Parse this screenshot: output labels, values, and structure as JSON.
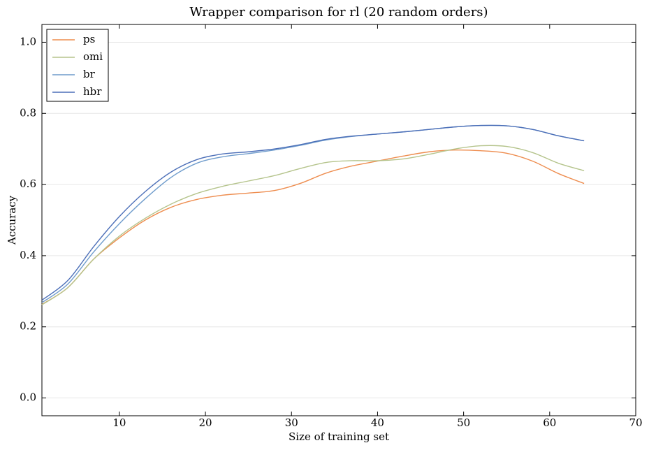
{
  "chart_data": {
    "type": "line",
    "title": "Wrapper comparison for rl (20 random orders)",
    "x_label": "Size of training set",
    "y_label": "Accuracy",
    "x": [
      1,
      4,
      7,
      10,
      13,
      16,
      19,
      22,
      25,
      28,
      31,
      34,
      37,
      40,
      43,
      46,
      49,
      52,
      55,
      58,
      61,
      64
    ],
    "series": [
      {
        "name": "ps",
        "color": "#ee8d4f",
        "values": [
          0.263,
          0.31,
          0.39,
          0.45,
          0.5,
          0.536,
          0.558,
          0.57,
          0.576,
          0.583,
          0.603,
          0.632,
          0.652,
          0.666,
          0.68,
          0.692,
          0.697,
          0.695,
          0.688,
          0.666,
          0.631,
          0.603
        ]
      },
      {
        "name": "omi",
        "color": "#b5c48c",
        "values": [
          0.262,
          0.31,
          0.39,
          0.455,
          0.505,
          0.545,
          0.575,
          0.595,
          0.61,
          0.625,
          0.645,
          0.662,
          0.667,
          0.667,
          0.672,
          0.685,
          0.7,
          0.709,
          0.707,
          0.69,
          0.66,
          0.639
        ]
      },
      {
        "name": "br",
        "color": "#6f9ccc",
        "values": [
          0.268,
          0.32,
          0.41,
          0.49,
          0.56,
          0.62,
          0.66,
          0.678,
          0.687,
          0.697,
          0.71,
          0.725,
          0.735,
          0.742,
          0.748,
          0.755,
          0.762,
          0.766,
          0.765,
          0.755,
          0.737,
          0.723
        ]
      },
      {
        "name": "hbr",
        "color": "#4c6fb8",
        "values": [
          0.275,
          0.33,
          0.425,
          0.51,
          0.58,
          0.635,
          0.67,
          0.686,
          0.692,
          0.7,
          0.712,
          0.727,
          0.736,
          0.742,
          0.748,
          0.755,
          0.762,
          0.766,
          0.765,
          0.755,
          0.737,
          0.723
        ]
      }
    ],
    "xlim": [
      1,
      70
    ],
    "xticks": [
      10,
      20,
      30,
      40,
      50,
      60,
      70
    ],
    "ylim": [
      -0.05,
      1.05
    ],
    "yticks": [
      {
        "value": 0,
        "label": "0.0"
      },
      0.2,
      0.4,
      0.6,
      0.8,
      {
        "value": 1,
        "label": "1.0"
      }
    ],
    "grid": true,
    "legend": "upper-left"
  }
}
